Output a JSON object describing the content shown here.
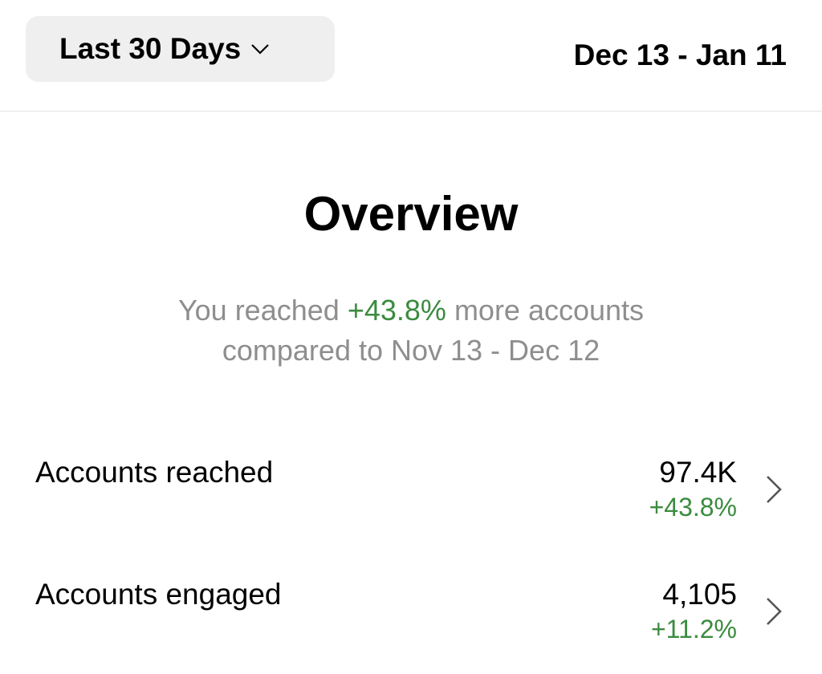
{
  "header": {
    "range_button": "Last 30 Days",
    "date_range": "Dec 13 - Jan 11"
  },
  "overview": {
    "title": "Overview",
    "summary_prefix": "You reached",
    "summary_change": "+43.8%",
    "summary_suffix": "more accounts",
    "comparison": "compared to Nov 13 - Dec 12"
  },
  "metrics": [
    {
      "label": "Accounts reached",
      "value": "97.4K",
      "change": "+43.8%"
    },
    {
      "label": "Accounts engaged",
      "value": "4,105",
      "change": "+11.2%"
    }
  ]
}
